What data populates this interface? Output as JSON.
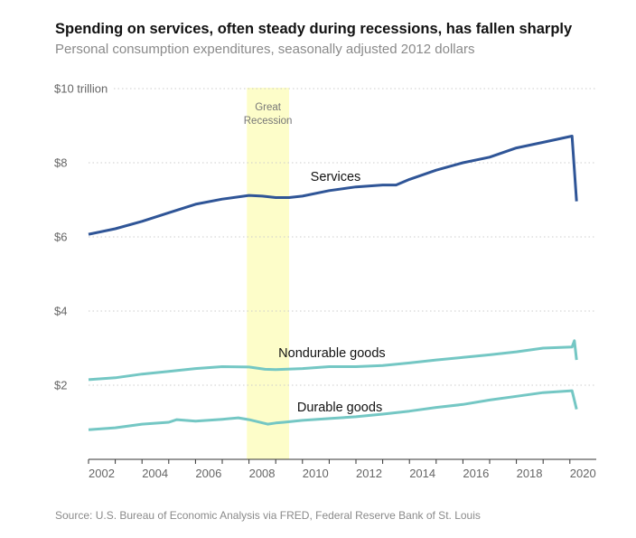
{
  "chart_data": {
    "type": "line",
    "title": "Spending on services, often steady during recessions, has fallen sharply",
    "subtitle": "Personal consumption expenditures, seasonally adjusted 2012 dollars",
    "source": "Source: U.S. Bureau of Economic Analysis via FRED, Federal Reserve Bank of St. Louis",
    "xlabel": "",
    "ylabel": "",
    "xlim": [
      2002,
      2021
    ],
    "ylim": [
      0,
      10
    ],
    "x_ticks": [
      "2002",
      "2004",
      "2006",
      "2008",
      "2010",
      "2012",
      "2014",
      "2016",
      "2018",
      "2020"
    ],
    "y_ticks": [
      {
        "value": 10,
        "label": "$10 trillion"
      },
      {
        "value": 8,
        "label": "$8"
      },
      {
        "value": 6,
        "label": "$6"
      },
      {
        "value": 4,
        "label": "$4"
      },
      {
        "value": 2,
        "label": "$2"
      }
    ],
    "grid": "horizontal dotted",
    "legend": "none (direct labels)",
    "annotations": [
      {
        "label_lines": [
          "Great",
          "Recession"
        ],
        "x_start": 2007.92,
        "x_end": 2009.5,
        "color": "#fdfdc9"
      }
    ],
    "series": [
      {
        "name": "Services",
        "color": "#2f5597",
        "x": [
          2002,
          2003,
          2004,
          2005,
          2006,
          2007,
          2008,
          2008.5,
          2009,
          2009.5,
          2010,
          2011,
          2012,
          2013,
          2013.5,
          2014,
          2015,
          2016,
          2017,
          2018,
          2019,
          2020.08,
          2020.25
        ],
        "y": [
          6.07,
          6.22,
          6.42,
          6.65,
          6.88,
          7.02,
          7.12,
          7.1,
          7.06,
          7.06,
          7.1,
          7.25,
          7.35,
          7.4,
          7.4,
          7.55,
          7.8,
          8.0,
          8.15,
          8.4,
          8.55,
          8.72,
          6.96
        ]
      },
      {
        "name": "Nondurable goods",
        "color": "#74c7c4",
        "x": [
          2002,
          2003,
          2004,
          2005,
          2006,
          2007,
          2008,
          2008.6,
          2009,
          2010,
          2011,
          2012,
          2013,
          2014,
          2015,
          2016,
          2017,
          2018,
          2019,
          2020.08,
          2020.17,
          2020.25
        ],
        "y": [
          2.15,
          2.2,
          2.3,
          2.37,
          2.45,
          2.5,
          2.49,
          2.43,
          2.42,
          2.45,
          2.5,
          2.5,
          2.53,
          2.6,
          2.68,
          2.75,
          2.82,
          2.9,
          3.0,
          3.03,
          3.2,
          2.68
        ]
      },
      {
        "name": "Durable goods",
        "color": "#74c7c4",
        "x": [
          2002,
          2003,
          2004,
          2005,
          2005.3,
          2006,
          2007,
          2007.6,
          2008,
          2008.7,
          2009,
          2009.3,
          2010,
          2011,
          2012,
          2013,
          2014,
          2015,
          2016,
          2017,
          2018,
          2019,
          2020.08,
          2020.25
        ],
        "y": [
          0.8,
          0.85,
          0.95,
          1.0,
          1.07,
          1.03,
          1.08,
          1.12,
          1.07,
          0.95,
          0.98,
          1.0,
          1.05,
          1.1,
          1.15,
          1.22,
          1.3,
          1.4,
          1.48,
          1.6,
          1.7,
          1.8,
          1.85,
          1.35
        ]
      }
    ]
  }
}
